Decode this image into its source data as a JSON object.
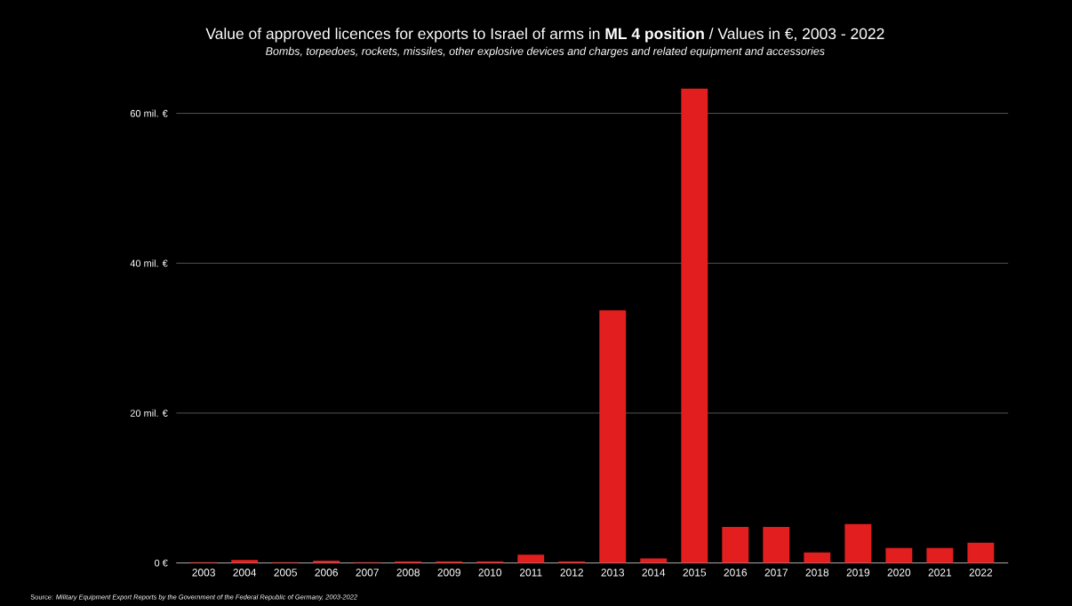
{
  "chart_data": {
    "type": "bar",
    "title": "Value of approved licences for exports to Israel of arms in **ML 4 position** / Values in €, 2003 - 2022",
    "subtitle": "*Bombs, torpedoes, rockets, missiles, other explosive devices and charges and related equipment and accessories*",
    "categories": [
      "2003",
      "2004",
      "2005",
      "2006",
      "2007",
      "2008",
      "2009",
      "2010",
      "2011",
      "2012",
      "2013",
      "2014",
      "2015",
      "2016",
      "2017",
      "2018",
      "2019",
      "2020",
      "2021",
      "2022"
    ],
    "values": [
      0.1,
      0.4,
      0.1,
      0.3,
      0.1,
      0.2,
      0.2,
      0.2,
      1.1,
      0.2,
      33.7,
      0.6,
      63.3,
      4.8,
      4.8,
      1.4,
      5.2,
      2.0,
      2.0,
      2.7
    ],
    "color": "#e31e1e",
    "ylim": [
      0,
      63.3
    ],
    "yticks": [
      {
        "value": 0,
        "label": "0 €"
      },
      {
        "value": 20,
        "label": "20 mil. €"
      },
      {
        "value": 40,
        "label": "40 mil. €"
      },
      {
        "value": 60,
        "label": "60 mil. €"
      }
    ],
    "grid": "y",
    "annotations": [
      "Source: *Military Equipment Export Reports by the Government of the Federal Republic of Germany, 2003-2022*"
    ]
  }
}
